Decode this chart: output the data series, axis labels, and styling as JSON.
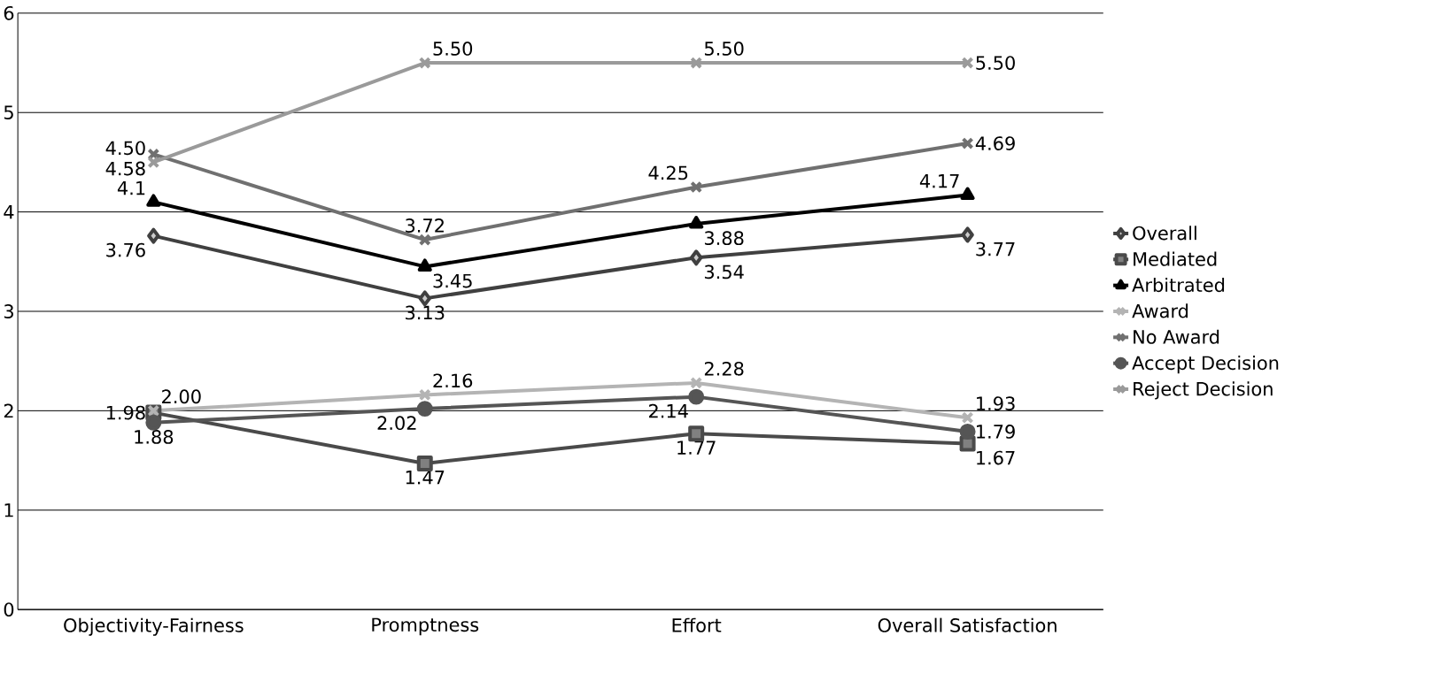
{
  "chart_data": {
    "type": "line",
    "categories": [
      "Objectivity-Fairness",
      "Promptness",
      "Effort",
      "Overall Satisfaction"
    ],
    "ylim": [
      0,
      6
    ],
    "yticks": [
      0,
      1,
      2,
      3,
      4,
      5,
      6
    ],
    "grid": "y",
    "legend": "right",
    "series": [
      {
        "name": "Overall",
        "color": "#404040",
        "marker": "diamond",
        "values": [
          3.76,
          3.13,
          3.54,
          3.77
        ],
        "value_labels": [
          "3.76",
          "3.13",
          "3.54",
          "3.77"
        ]
      },
      {
        "name": "Mediated",
        "color": "#4a4a4a",
        "marker": "square",
        "values": [
          1.98,
          1.47,
          1.77,
          1.67
        ],
        "value_labels": [
          "1.98",
          "1.47",
          "1.77",
          "1.67"
        ]
      },
      {
        "name": "Arbitrated",
        "color": "#000000",
        "marker": "triangle",
        "values": [
          4.1,
          3.45,
          3.88,
          4.17
        ],
        "value_labels": [
          "4.1",
          "3.45",
          "3.88",
          "4.17"
        ]
      },
      {
        "name": "Award",
        "color": "#b4b4b4",
        "marker": "cross",
        "values": [
          2.0,
          2.16,
          2.28,
          1.93
        ],
        "value_labels": [
          "2.00",
          "2.16",
          "2.28",
          "1.93"
        ]
      },
      {
        "name": "No Award",
        "color": "#707070",
        "marker": "cross",
        "values": [
          4.58,
          3.72,
          4.25,
          4.69
        ],
        "value_labels": [
          "4.58",
          "3.72",
          "4.25",
          "4.69"
        ]
      },
      {
        "name": "Accept Decision",
        "color": "#555555",
        "marker": "circle",
        "values": [
          1.88,
          2.02,
          2.14,
          1.79
        ],
        "value_labels": [
          "1.88",
          "2.02",
          "2.14",
          "1.79"
        ]
      },
      {
        "name": "Reject Decision",
        "color": "#9a9a9a",
        "marker": "cross",
        "values": [
          4.5,
          5.5,
          5.5,
          5.5
        ],
        "value_labels": [
          "4.50",
          "5.50",
          "5.50",
          "5.50"
        ]
      }
    ]
  }
}
